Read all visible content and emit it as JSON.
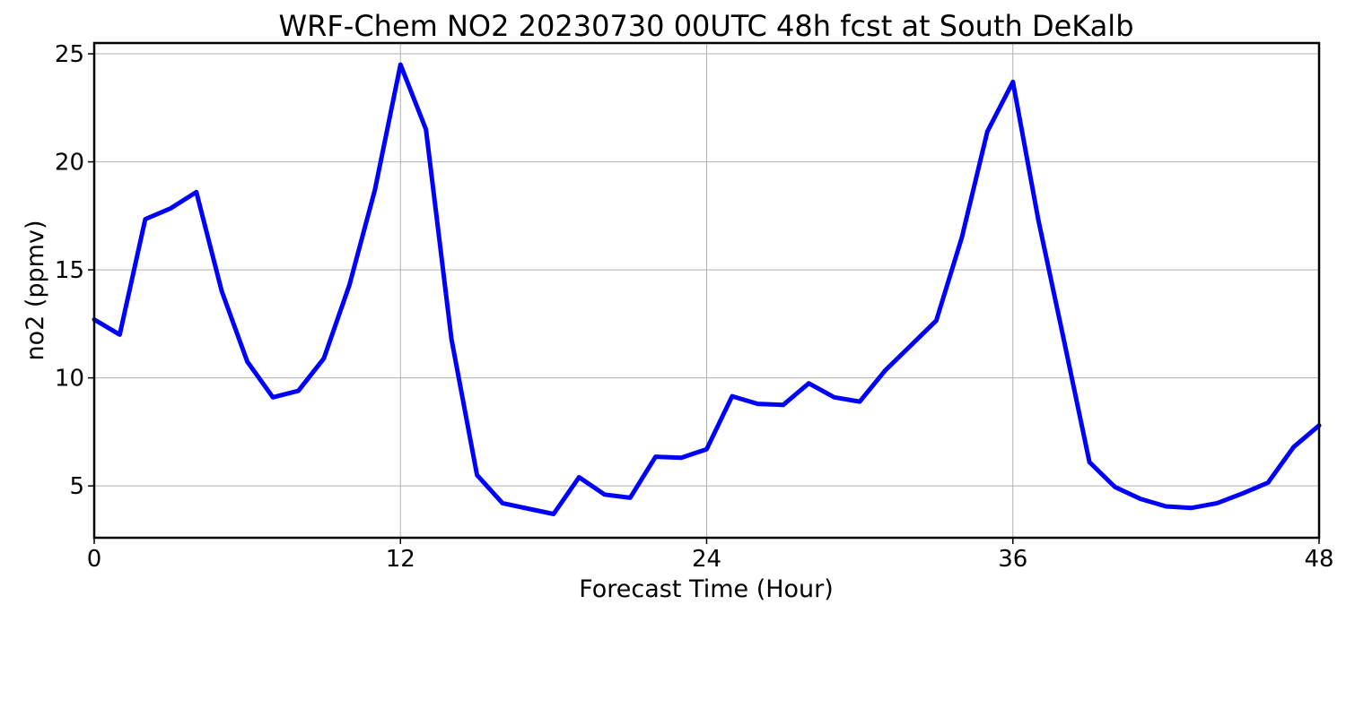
{
  "chart_data": {
    "type": "line",
    "title": "WRF-Chem NO2  20230730 00UTC 48h fcst at South DeKalb",
    "xlabel": "Forecast Time (Hour)",
    "ylabel": "no2  (ppmv)",
    "xlim": [
      0,
      48
    ],
    "ylim": [
      2.6,
      25.5
    ],
    "xticks": [
      0,
      12,
      24,
      36,
      48
    ],
    "xtick_labels": [
      "0",
      "12",
      "24",
      "36",
      "48"
    ],
    "yticks": [
      5,
      10,
      15,
      20,
      25
    ],
    "ytick_labels": [
      "5",
      "10",
      "15",
      "20",
      "25"
    ],
    "grid": true,
    "series": [
      {
        "color": "#0000ff",
        "x": [
          0,
          1,
          2,
          3,
          4,
          5,
          6,
          7,
          8,
          9,
          10,
          11,
          12,
          13,
          14,
          15,
          16,
          17,
          18,
          19,
          20,
          21,
          22,
          23,
          24,
          25,
          26,
          27,
          28,
          29,
          30,
          31,
          32,
          33,
          34,
          35,
          36,
          37,
          38,
          39,
          40,
          41,
          42,
          43,
          44,
          45,
          46,
          47,
          48
        ],
        "y": [
          12.7,
          12.0,
          17.35,
          17.85,
          18.6,
          14.0,
          10.75,
          9.1,
          9.4,
          10.9,
          14.3,
          18.7,
          24.5,
          21.5,
          11.8,
          5.5,
          4.2,
          3.95,
          3.7,
          5.4,
          4.6,
          4.45,
          6.35,
          6.3,
          6.7,
          9.15,
          8.8,
          8.75,
          9.75,
          9.1,
          8.9,
          10.35,
          11.5,
          12.65,
          16.5,
          21.4,
          23.7,
          17.3,
          11.75,
          6.1,
          4.95,
          4.4,
          4.05,
          3.98,
          4.2,
          4.65,
          5.15,
          6.8,
          7.8
        ]
      }
    ]
  }
}
